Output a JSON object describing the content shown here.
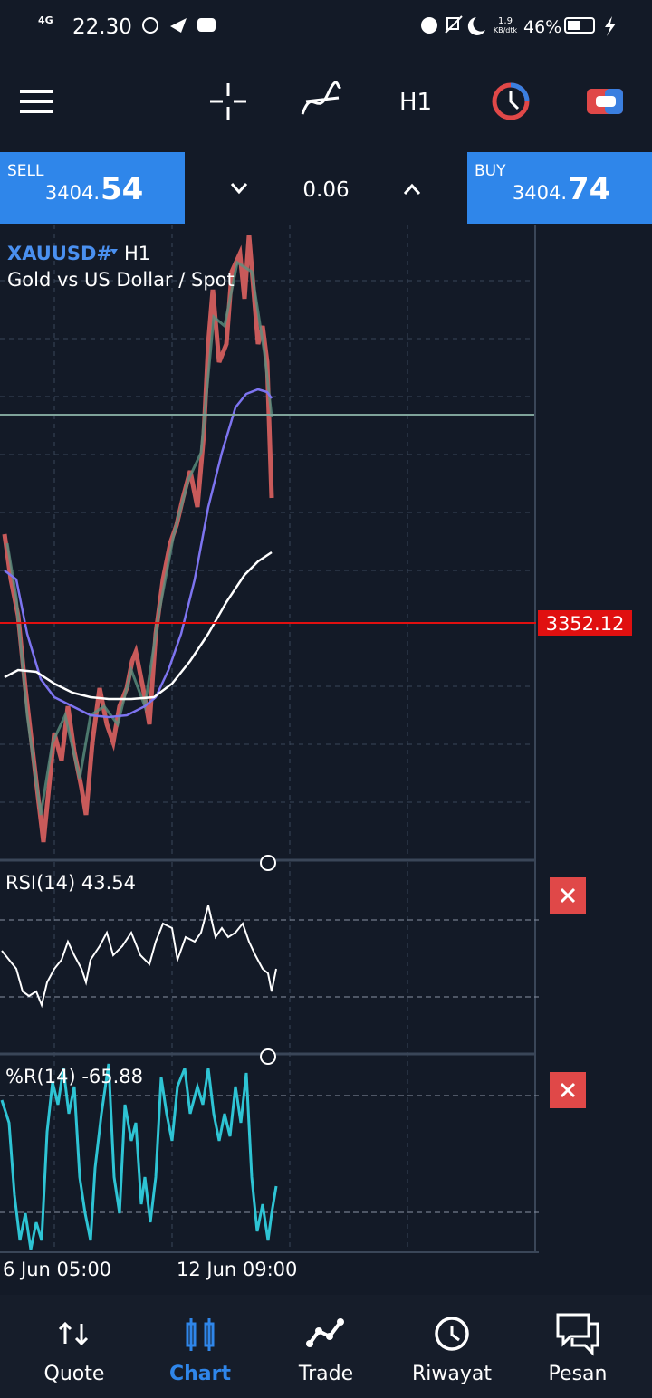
{
  "status_bar": {
    "network": "4G",
    "time": "22.30",
    "speed": "1,9",
    "speed_unit": "KB/dtk",
    "battery": "46%"
  },
  "toolbar": {
    "timeframe": "H1"
  },
  "trade_panel": {
    "sell": {
      "label": "SELL",
      "price_main": "3404.",
      "price_big": "54"
    },
    "spread": "0.06",
    "buy": {
      "label": "BUY",
      "price_main": "3404.",
      "price_big": "74"
    }
  },
  "chart": {
    "symbol": "XAUUSD#",
    "timeframe": "H1",
    "description": "Gold vs US Dollar / Spot",
    "price_line_label": "3352.12",
    "x_labels": [
      "6 Jun 05:00",
      "12 Jun 09:00"
    ]
  },
  "indicators": [
    {
      "label": "RSI(14) 43.54"
    },
    {
      "label": "%R(14) -65.88"
    }
  ],
  "nav": [
    {
      "label": "Quote"
    },
    {
      "label": "Chart"
    },
    {
      "label": "Trade"
    },
    {
      "label": "Riwayat"
    },
    {
      "label": "Pesan"
    }
  ]
}
